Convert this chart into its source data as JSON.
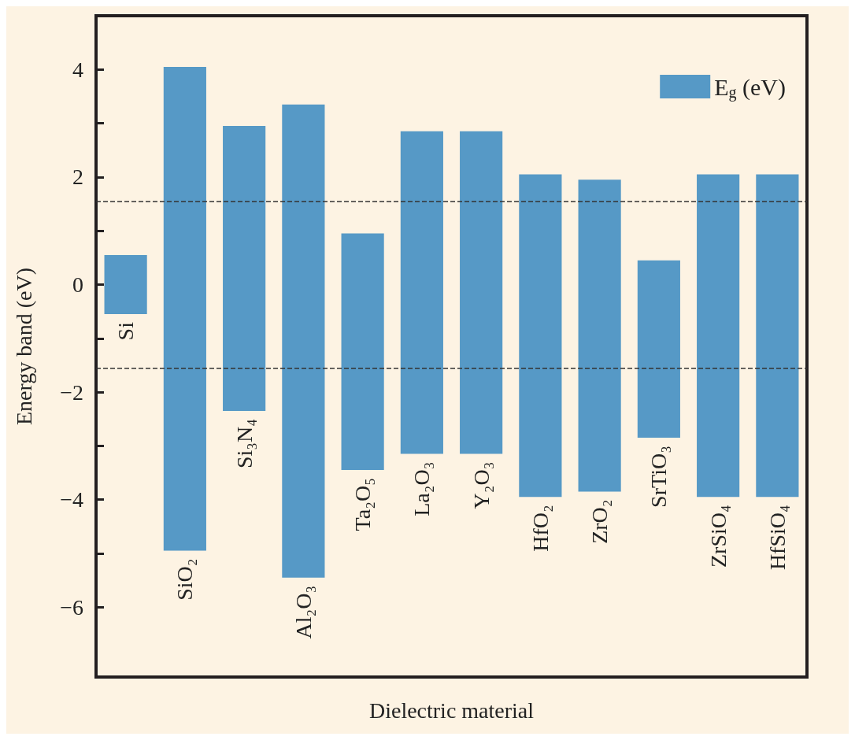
{
  "chart_data": {
    "type": "bar",
    "xlabel": "Dielectric material",
    "ylabel": "Energy band (eV)",
    "categories": [
      "Si",
      "SiO₂",
      "Si₃N₄",
      "Al₂O₃",
      "Ta₂O₅",
      "La₂O₃",
      "Y₂O₃",
      "HfO₂",
      "ZrO₂",
      "SrTiO₃",
      "ZrSiO₄",
      "HfSiO₄"
    ],
    "series": [
      {
        "name": "E$_{g}$ (eV)",
        "color": "#5699c6",
        "base": [
          -0.55,
          -4.95,
          -2.35,
          -5.45,
          -3.45,
          -3.15,
          -3.15,
          -3.95,
          -3.85,
          -2.85,
          -3.95,
          -3.95
        ],
        "values": [
          1.1,
          9.0,
          5.3,
          8.8,
          4.4,
          6.0,
          6.0,
          6.0,
          5.8,
          3.3,
          6.0,
          6.0
        ]
      }
    ],
    "ylim": [
      -7.3,
      5
    ],
    "yticks": [
      -6,
      {
        "value": -5,
        "label": null
      },
      -4,
      {
        "value": -3,
        "label": null
      },
      -2,
      {
        "value": -1,
        "label": null
      },
      0,
      {
        "value": 1,
        "label": null
      },
      2,
      {
        "value": 3,
        "label": null
      },
      4
    ],
    "ref_lines": [
      {
        "axis": "y",
        "value": 1.55,
        "color": "#333333",
        "line_style": "dashed"
      },
      {
        "axis": "y",
        "value": -1.55,
        "color": "#333333",
        "line_style": "dashed"
      }
    ],
    "tick_labels": "y",
    "grid": false,
    "legend": "top right"
  }
}
